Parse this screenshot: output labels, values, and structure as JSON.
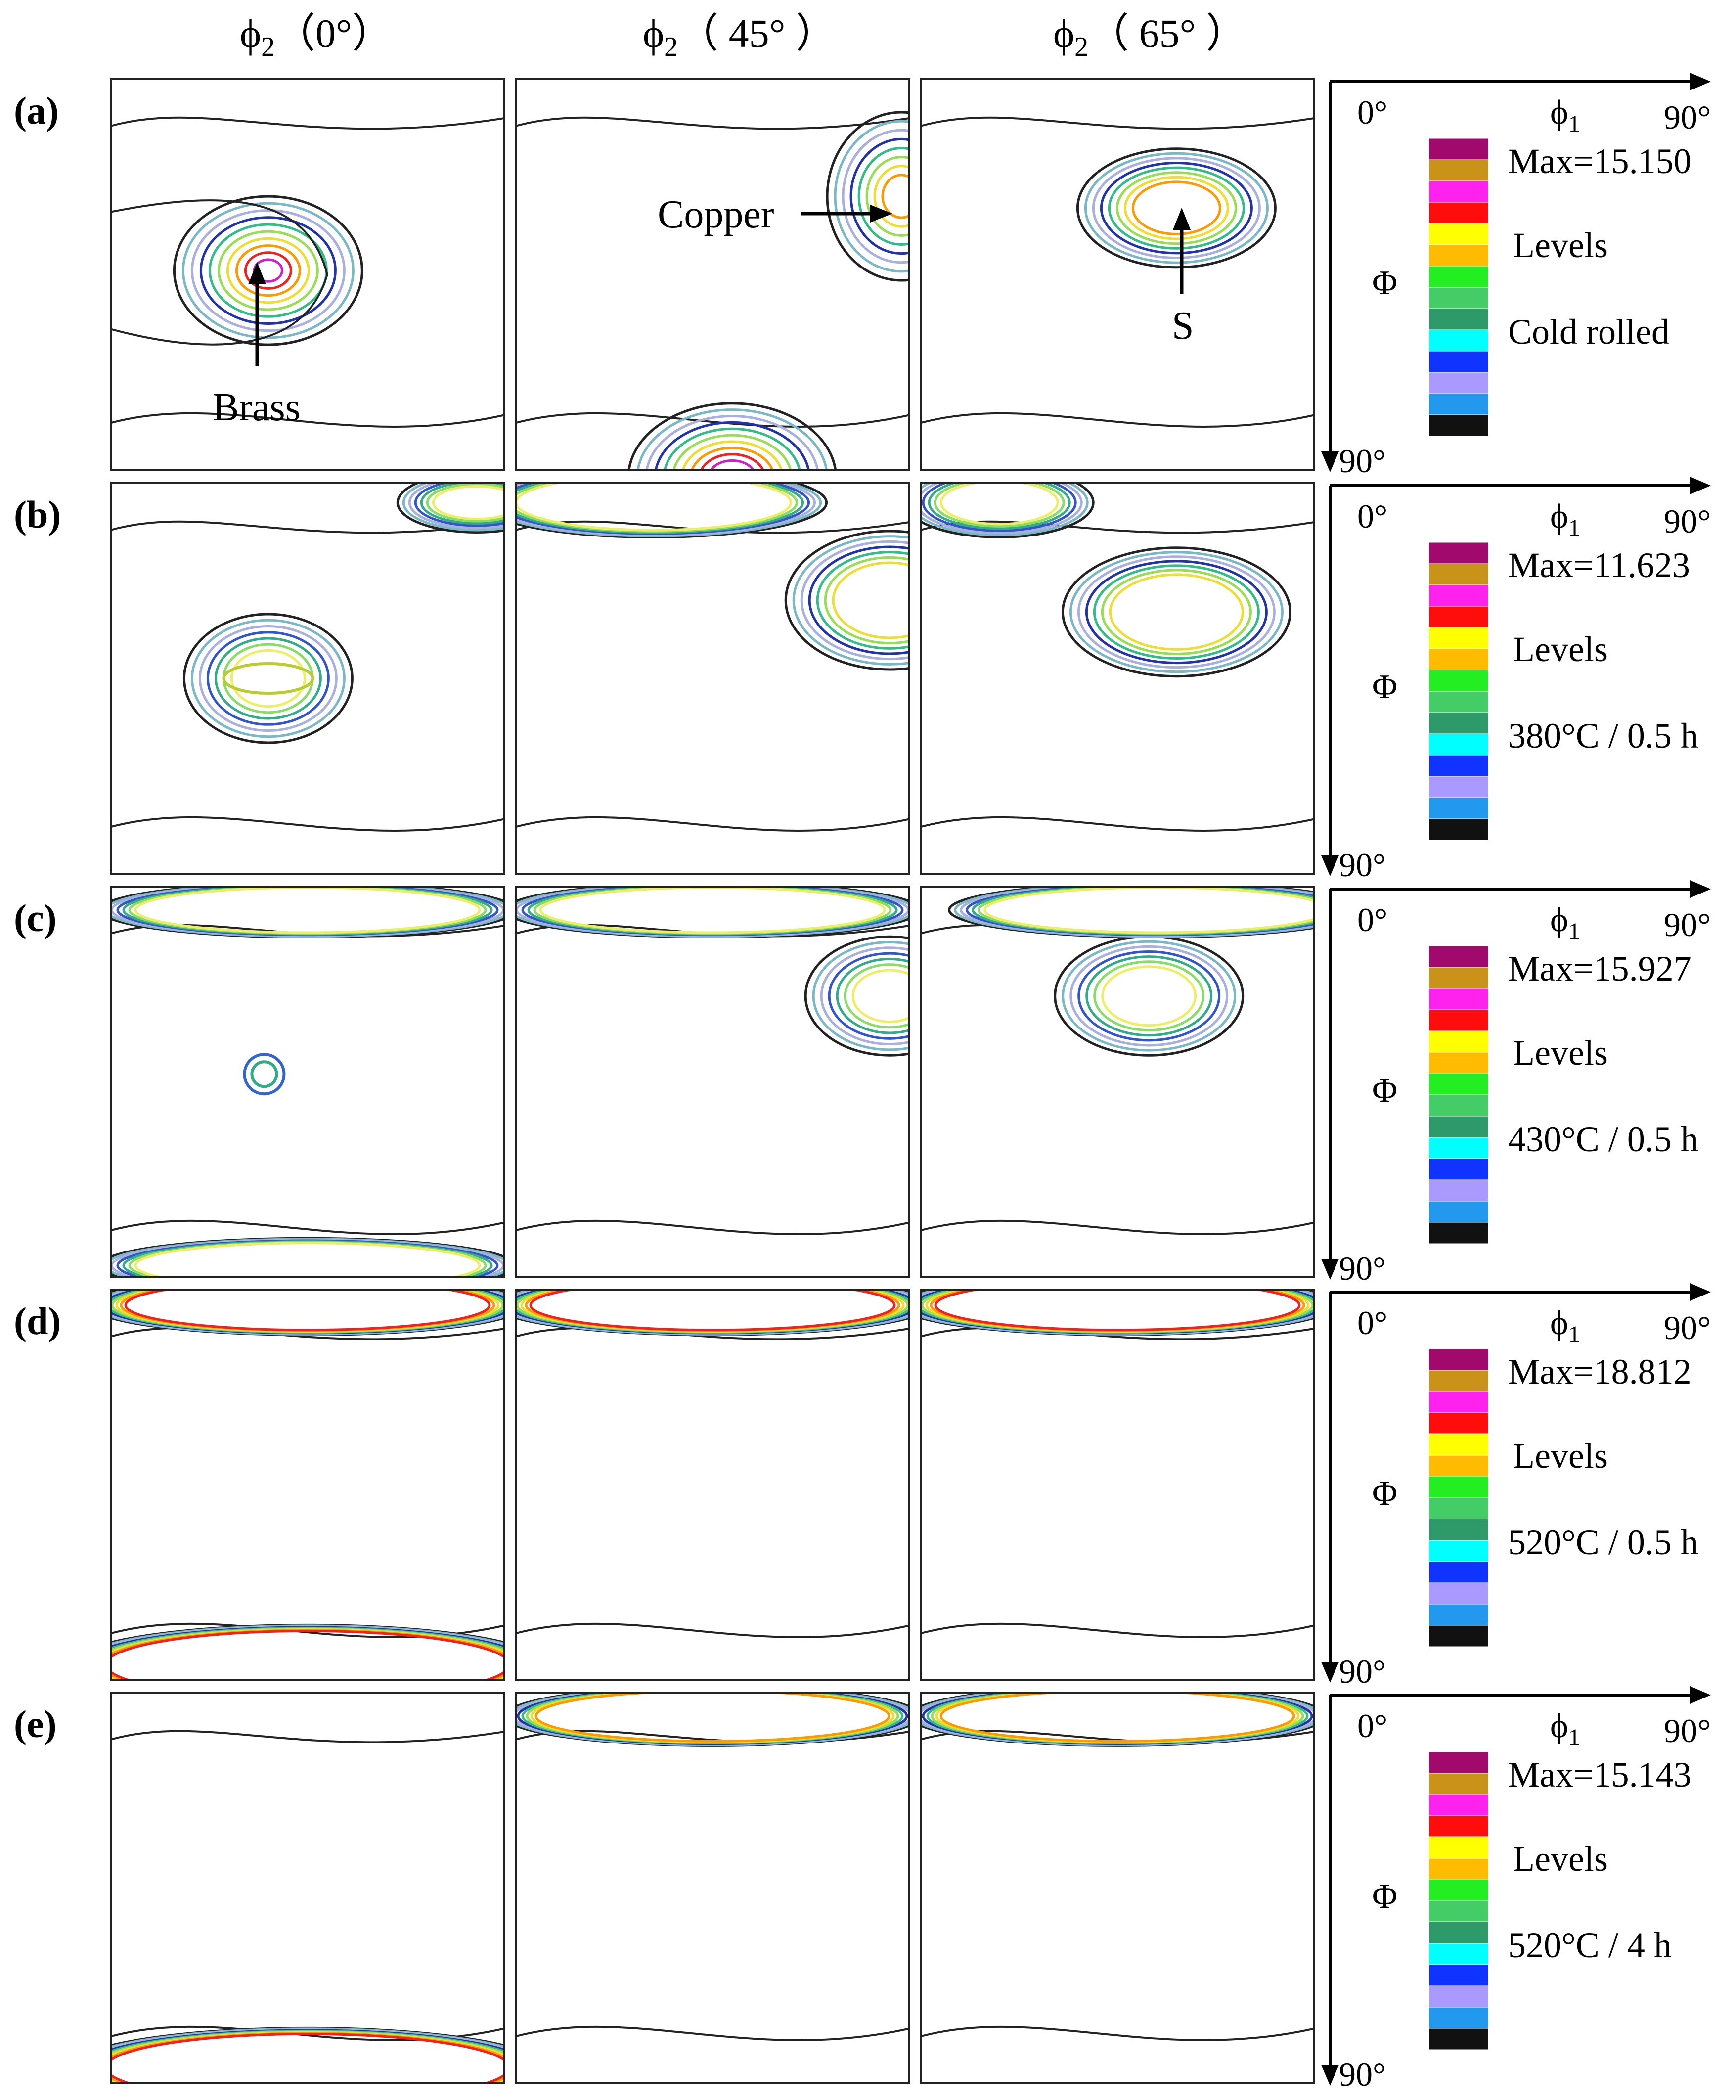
{
  "column_headers": [
    {
      "symbol": "ϕ",
      "sub": "2",
      "angle": "（0°）"
    },
    {
      "symbol": "ϕ",
      "sub": "2",
      "angle": "（ 45° ）"
    },
    {
      "symbol": "ϕ",
      "sub": "2",
      "angle": "（ 65° ）"
    }
  ],
  "annotations": {
    "brass": "Brass",
    "copper": "Copper",
    "s": "S"
  },
  "axes": {
    "x_start": "0°",
    "x_end": "90°",
    "x_symbol": "ϕ",
    "x_sub": "1",
    "y_symbol": "Φ",
    "y_end": "90°"
  },
  "legend_colors": [
    "#a10a6c",
    "#c89318",
    "#ff22ee",
    "#ff0d0d",
    "#ffff00",
    "#ffbb00",
    "#22ee22",
    "#44cc66",
    "#2e9a6a",
    "#00ffff",
    "#1133ff",
    "#aa99ff",
    "#2299ee",
    "#111111"
  ],
  "levels_label": "Levels",
  "rows": [
    {
      "label": "(a)",
      "max": "Max=15.150",
      "condition": "Cold rolled"
    },
    {
      "label": "(b)",
      "max": "Max=11.623",
      "condition": "380°C / 0.5 h"
    },
    {
      "label": "(c)",
      "max": "Max=15.927",
      "condition": "430°C / 0.5 h"
    },
    {
      "label": "(d)",
      "max": "Max=18.812",
      "condition": "520°C / 0.5 h"
    },
    {
      "label": "(e)",
      "max": "Max=15.143",
      "condition": "520°C / 4 h"
    }
  ]
}
